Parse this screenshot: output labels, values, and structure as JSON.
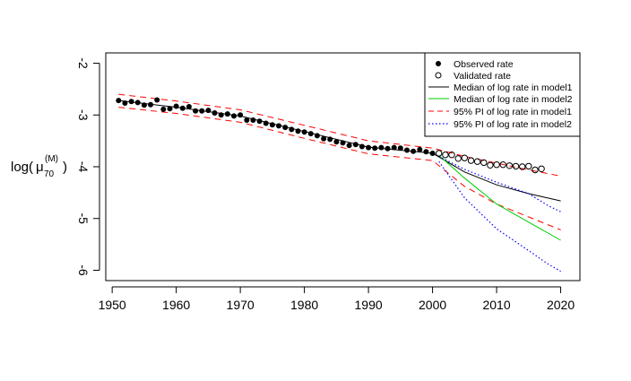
{
  "chart_data": {
    "type": "line",
    "ylabel": {
      "prefix": "log(",
      "mu": "μ",
      "sub": "70",
      "sup": "(M)",
      "suffix": ")"
    },
    "xlim": [
      1949,
      2023
    ],
    "ylim": [
      -6.2,
      -1.8
    ],
    "xticks": [
      1950,
      1960,
      1970,
      1980,
      1990,
      2000,
      2010,
      2020
    ],
    "xtick_labels": [
      "1950",
      "1960",
      "1970",
      "1980",
      "1990",
      "2000",
      "2010",
      "2020"
    ],
    "yticks": [
      -2,
      -3,
      -4,
      -5,
      -6
    ],
    "ytick_labels": [
      "-2",
      "-3",
      "-4",
      "-5",
      "-6"
    ],
    "legend_position": "top-right",
    "legend": [
      {
        "label": "Observed rate",
        "kind": "filled-point",
        "color": "#000000"
      },
      {
        "label": "Validated rate",
        "kind": "open-point",
        "color": "#000000"
      },
      {
        "label": "Median of log rate in model1",
        "kind": "solid",
        "color": "#000000"
      },
      {
        "label": "Median of log rate in model2",
        "kind": "solid",
        "color": "#00cd00"
      },
      {
        "label": "95% PI of log rate in model1",
        "kind": "dashed",
        "color": "#ff0000"
      },
      {
        "label": "95% PI of log rate in model2",
        "kind": "dotted",
        "color": "#0000ff"
      }
    ],
    "observed": {
      "x": [
        1951,
        1952,
        1953,
        1954,
        1955,
        1956,
        1957,
        1958,
        1959,
        1960,
        1961,
        1962,
        1963,
        1964,
        1965,
        1966,
        1967,
        1968,
        1969,
        1970,
        1971,
        1972,
        1973,
        1974,
        1975,
        1976,
        1977,
        1978,
        1979,
        1980,
        1981,
        1982,
        1983,
        1984,
        1985,
        1986,
        1987,
        1988,
        1989,
        1990,
        1991,
        1992,
        1993,
        1994,
        1995,
        1996,
        1997,
        1998,
        1999,
        2000
      ],
      "y": [
        -2.72,
        -2.77,
        -2.74,
        -2.76,
        -2.81,
        -2.8,
        -2.71,
        -2.89,
        -2.88,
        -2.83,
        -2.87,
        -2.84,
        -2.92,
        -2.92,
        -2.91,
        -2.96,
        -3.0,
        -2.98,
        -3.02,
        -3.0,
        -3.1,
        -3.1,
        -3.12,
        -3.16,
        -3.19,
        -3.21,
        -3.24,
        -3.28,
        -3.31,
        -3.33,
        -3.36,
        -3.4,
        -3.46,
        -3.47,
        -3.52,
        -3.54,
        -3.59,
        -3.57,
        -3.61,
        -3.63,
        -3.64,
        -3.63,
        -3.65,
        -3.63,
        -3.64,
        -3.68,
        -3.7,
        -3.67,
        -3.71,
        -3.74
      ]
    },
    "validated": {
      "x": [
        2001,
        2002,
        2003,
        2004,
        2005,
        2006,
        2007,
        2008,
        2009,
        2010,
        2011,
        2012,
        2013,
        2014,
        2015,
        2016,
        2017
      ],
      "y": [
        -3.74,
        -3.77,
        -3.77,
        -3.84,
        -3.83,
        -3.88,
        -3.9,
        -3.92,
        -3.97,
        -3.96,
        -3.96,
        -3.98,
        -3.99,
        -4.0,
        -3.99,
        -4.06,
        -4.04
      ]
    },
    "series": [
      {
        "name": "Median of log rate in model1",
        "style": "solid",
        "color": "#000000",
        "width": 1,
        "x": [
          1951,
          1960,
          1970,
          1980,
          1990,
          2000,
          2005,
          2010,
          2015,
          2020
        ],
        "y": [
          -2.72,
          -2.85,
          -3.02,
          -3.32,
          -3.62,
          -3.74,
          -4.1,
          -4.35,
          -4.52,
          -4.66
        ]
      },
      {
        "name": "95% PI of log rate in model1 (upper)",
        "style": "dashed",
        "color": "#ff0000",
        "width": 1,
        "x": [
          1951,
          1960,
          1970,
          1980,
          1990,
          2000,
          2005,
          2010,
          2015,
          2020
        ],
        "y": [
          -2.6,
          -2.73,
          -2.9,
          -3.2,
          -3.5,
          -3.64,
          -3.8,
          -3.93,
          -4.06,
          -4.18
        ]
      },
      {
        "name": "95% PI of log rate in model1 (lower)",
        "style": "dashed",
        "color": "#ff0000",
        "width": 1,
        "x": [
          1951,
          1960,
          1970,
          1980,
          1990,
          2000,
          2005,
          2010,
          2015,
          2020
        ],
        "y": [
          -2.85,
          -2.97,
          -3.14,
          -3.45,
          -3.75,
          -3.88,
          -4.38,
          -4.72,
          -4.97,
          -5.22
        ]
      },
      {
        "name": "Median of log rate in model2",
        "style": "solid",
        "color": "#00cd00",
        "width": 1,
        "x": [
          2001,
          2005,
          2010,
          2015,
          2020
        ],
        "y": [
          -3.78,
          -4.22,
          -4.72,
          -5.07,
          -5.42
        ]
      },
      {
        "name": "95% PI of log rate in model2 (upper)",
        "style": "dotted",
        "color": "#0000ff",
        "width": 1.2,
        "x": [
          2001,
          2005,
          2010,
          2015,
          2018,
          2020
        ],
        "y": [
          -3.8,
          -4.05,
          -4.3,
          -4.52,
          -4.75,
          -4.87
        ]
      },
      {
        "name": "95% PI of log rate in model2 (lower)",
        "style": "dotted",
        "color": "#0000ff",
        "width": 1.2,
        "x": [
          2001,
          2005,
          2010,
          2015,
          2018,
          2020
        ],
        "y": [
          -3.9,
          -4.6,
          -5.2,
          -5.62,
          -5.88,
          -6.02
        ]
      }
    ]
  }
}
